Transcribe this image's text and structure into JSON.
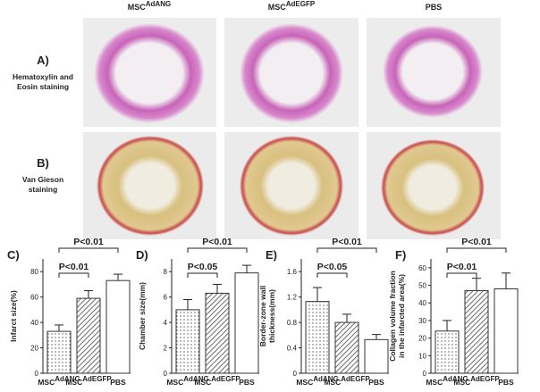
{
  "histology": {
    "columns": [
      "MSCAdANG",
      "MSCAdEGFP",
      "PBS"
    ],
    "rows": [
      {
        "panel": "A)",
        "label": [
          "Hematoxylin and",
          "Eosin staining"
        ]
      },
      {
        "panel": "B)",
        "label": [
          "Van Gieson",
          "staining"
        ]
      }
    ]
  },
  "chart_data": [
    {
      "type": "bar",
      "panel": "C)",
      "ylabel": [
        "Infarct size(%)"
      ],
      "categories": [
        "MSCAdANG",
        "MSCAdEGFP",
        "PBS"
      ],
      "values": [
        33,
        59,
        73
      ],
      "errors": [
        5,
        6,
        5
      ],
      "ylim": [
        0,
        90
      ],
      "yticks": [
        0,
        20,
        40,
        60,
        80
      ],
      "annotations": [
        "P<0.01",
        "P<0.01"
      ]
    },
    {
      "type": "bar",
      "panel": "D)",
      "ylabel": [
        "Chamber size(mm)"
      ],
      "categories": [
        "MSCAdANG",
        "MSCAdEGFP",
        "PBS"
      ],
      "values": [
        5.0,
        6.3,
        7.9
      ],
      "errors": [
        0.8,
        0.7,
        0.6
      ],
      "ylim": [
        0,
        9
      ],
      "yticks": [
        0,
        2,
        4,
        6,
        8
      ],
      "annotations": [
        "P<0.01",
        "P<0.05"
      ]
    },
    {
      "type": "bar",
      "panel": "E)",
      "ylabel": [
        "Border-zone wall",
        "thickness(mm)"
      ],
      "categories": [
        "MSCAdANG",
        "MSCAdEGFP",
        "PBS"
      ],
      "values": [
        1.13,
        0.8,
        0.53
      ],
      "errors": [
        0.22,
        0.13,
        0.08
      ],
      "ylim": [
        0,
        1.8
      ],
      "yticks": [
        0,
        0.4,
        0.8,
        1.2,
        1.6
      ],
      "annotations": [
        "P<0.01",
        "P<0.05"
      ]
    },
    {
      "type": "bar",
      "panel": "F)",
      "ylabel": [
        "Collagen volume fraction",
        "in the infarcted area(%)"
      ],
      "categories": [
        "MSCAdANG",
        "MSCAdEGFP",
        "PBS"
      ],
      "values": [
        24,
        47,
        48
      ],
      "errors": [
        6,
        7,
        9
      ],
      "ylim": [
        0,
        65
      ],
      "yticks": [
        0,
        10,
        20,
        30,
        40,
        50,
        60
      ],
      "annotations": [
        "P<0.01",
        "P<0.01"
      ]
    }
  ]
}
